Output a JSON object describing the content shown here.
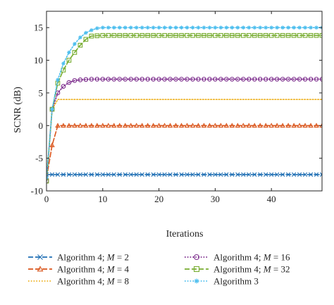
{
  "chart_data": {
    "type": "line",
    "xlabel": "Iterations",
    "ylabel": "SCNR (dB)",
    "xlim": [
      0,
      49
    ],
    "ylim": [
      -10,
      17.5
    ],
    "xticks": [
      0,
      10,
      20,
      30,
      40
    ],
    "yticks": [
      -10,
      -5,
      0,
      5,
      10,
      15
    ],
    "grid": false,
    "legend_placement": "bottom",
    "series": [
      {
        "name": "Algorithm 4; M = 2",
        "name_parts": [
          "Algorithm 4; ",
          "M",
          " = 2"
        ],
        "color": "#1f6fb4",
        "dash": "long-dash",
        "marker": "x",
        "points": [
          [
            0,
            -7.5
          ],
          [
            1,
            -7.5
          ],
          [
            2,
            -7.5
          ],
          [
            5,
            -7.5
          ],
          [
            10,
            -7.5
          ],
          [
            20,
            -7.5
          ],
          [
            30,
            -7.5
          ],
          [
            40,
            -7.5
          ],
          [
            49,
            -7.5
          ]
        ]
      },
      {
        "name": "Algorithm 4; M = 4",
        "name_parts": [
          "Algorithm 4; ",
          "M",
          " = 4"
        ],
        "color": "#d95319",
        "dash": "long-dash",
        "marker": "triangle",
        "points": [
          [
            0,
            -8.0
          ],
          [
            1,
            -3.0
          ],
          [
            2,
            0.0
          ],
          [
            3,
            0.0
          ],
          [
            5,
            0.0
          ],
          [
            10,
            0.0
          ],
          [
            20,
            0.0
          ],
          [
            30,
            0.0
          ],
          [
            40,
            0.0
          ],
          [
            49,
            0.0
          ]
        ]
      },
      {
        "name": "Algorithm 4; M = 8",
        "name_parts": [
          "Algorithm 4; ",
          "M",
          " = 8"
        ],
        "color": "#edb120",
        "dash": "dotted",
        "marker": "none",
        "points": [
          [
            0,
            -8.0
          ],
          [
            1,
            2.5
          ],
          [
            2,
            4.0
          ],
          [
            3,
            4.0
          ],
          [
            5,
            4.0
          ],
          [
            10,
            4.0
          ],
          [
            20,
            4.0
          ],
          [
            30,
            4.0
          ],
          [
            40,
            4.0
          ],
          [
            49,
            4.0
          ]
        ]
      },
      {
        "name": "Algorithm 4; M = 16",
        "name_parts": [
          "Algorithm 4; ",
          "M",
          " = 16"
        ],
        "color": "#7e2f8e",
        "dash": "dotted",
        "marker": "circle",
        "points": [
          [
            0,
            -8.5
          ],
          [
            1,
            2.5
          ],
          [
            2,
            5.0
          ],
          [
            3,
            6.0
          ],
          [
            4,
            6.6
          ],
          [
            5,
            6.9
          ],
          [
            6,
            7.0
          ],
          [
            8,
            7.1
          ],
          [
            10,
            7.1
          ],
          [
            20,
            7.1
          ],
          [
            30,
            7.1
          ],
          [
            40,
            7.1
          ],
          [
            49,
            7.1
          ]
        ]
      },
      {
        "name": "Algorithm 4; M = 32",
        "name_parts": [
          "Algorithm 4; ",
          "M",
          " = 32"
        ],
        "color": "#77ac30",
        "dash": "long-dash",
        "marker": "square",
        "points": [
          [
            0,
            -8.5
          ],
          [
            1,
            2.5
          ],
          [
            2,
            6.5
          ],
          [
            3,
            8.5
          ],
          [
            4,
            10.0
          ],
          [
            5,
            11.2
          ],
          [
            6,
            12.3
          ],
          [
            7,
            13.2
          ],
          [
            8,
            13.7
          ],
          [
            10,
            13.8
          ],
          [
            20,
            13.8
          ],
          [
            30,
            13.8
          ],
          [
            40,
            13.8
          ],
          [
            49,
            13.8
          ]
        ]
      },
      {
        "name": "Algorithm 3",
        "name_parts": [
          "Algorithm 3",
          "",
          ""
        ],
        "color": "#4dbeee",
        "dash": "dotted",
        "marker": "star",
        "points": [
          [
            0,
            -8.0
          ],
          [
            1,
            2.5
          ],
          [
            2,
            7.0
          ],
          [
            3,
            9.5
          ],
          [
            4,
            11.2
          ],
          [
            5,
            12.5
          ],
          [
            6,
            13.5
          ],
          [
            7,
            14.2
          ],
          [
            8,
            14.6
          ],
          [
            9,
            14.9
          ],
          [
            10,
            15.0
          ],
          [
            20,
            15.0
          ],
          [
            30,
            15.0
          ],
          [
            40,
            15.0
          ],
          [
            49,
            15.0
          ]
        ]
      }
    ]
  }
}
